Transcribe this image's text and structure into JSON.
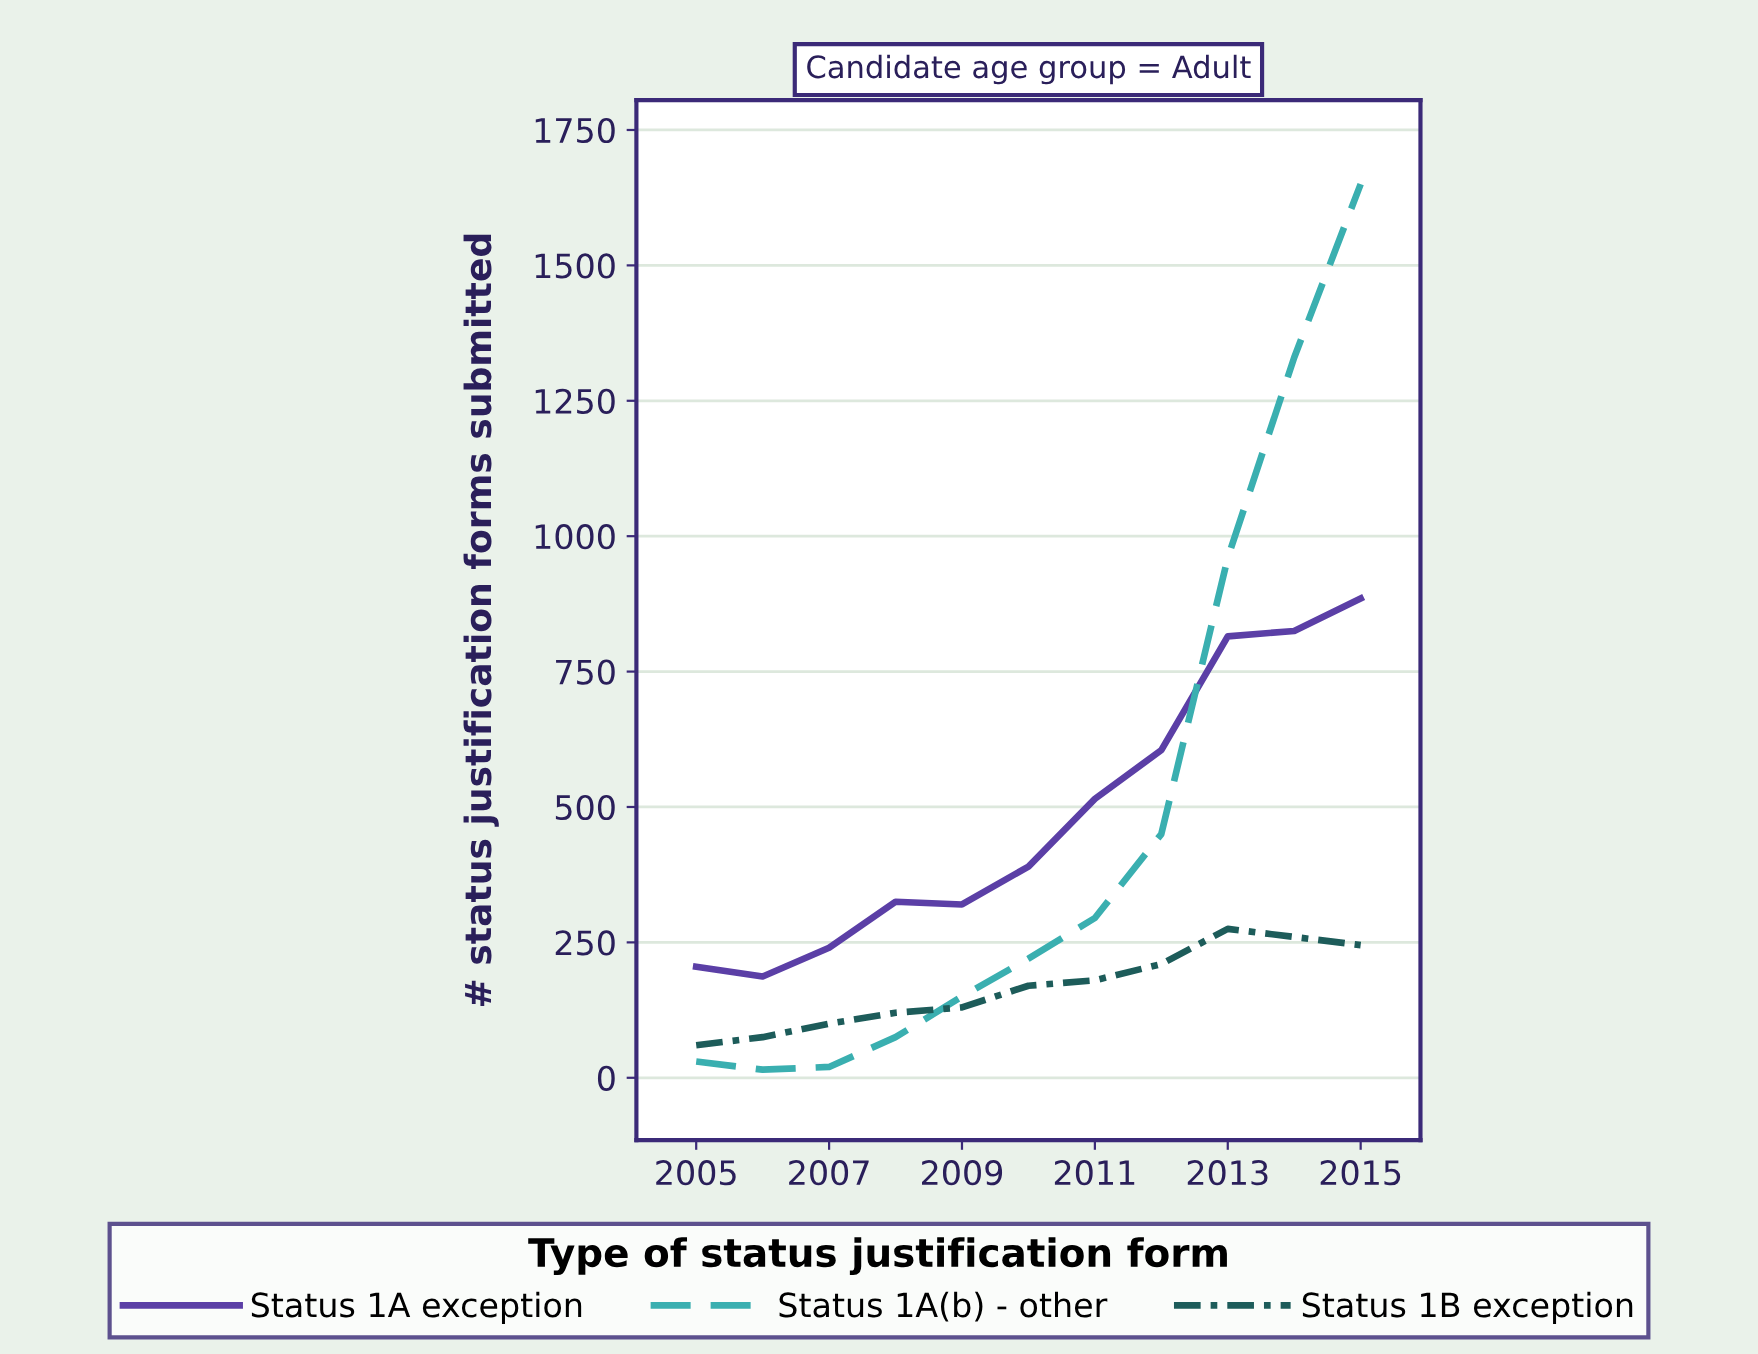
{
  "chart_data": {
    "type": "line",
    "subtitle": "Candidate age group = Adult",
    "ylabel": "# status justification forms submitted",
    "legend_title": "Type of status justification form",
    "x": [
      2005,
      2006,
      2007,
      2008,
      2009,
      2010,
      2011,
      2012,
      2013,
      2014,
      2015
    ],
    "series": [
      {
        "name": "Status 1A exception",
        "color": "#5b3fa6",
        "line_style": "solid",
        "values": [
          205,
          187,
          240,
          325,
          320,
          390,
          515,
          605,
          815,
          825,
          885
        ]
      },
      {
        "name": "Status 1A(b) - other",
        "color": "#3aafb0",
        "line_style": "dashed",
        "values": [
          30,
          15,
          20,
          75,
          150,
          220,
          295,
          450,
          960,
          1330,
          1650
        ]
      },
      {
        "name": "Status 1B exception",
        "color": "#1d5c5a",
        "line_style": "dashdot",
        "values": [
          60,
          75,
          100,
          120,
          130,
          170,
          180,
          210,
          275,
          260,
          245
        ]
      }
    ],
    "xlim": [
      2004.1,
      2015.9
    ],
    "ylim": [
      -115,
      1805
    ],
    "xticks": [
      2005,
      2007,
      2009,
      2011,
      2013,
      2015
    ],
    "yticks": [
      0,
      250,
      500,
      750,
      1000,
      1250,
      1500,
      1750
    ],
    "grid": "y",
    "legend": "bottom",
    "marker": "none"
  }
}
